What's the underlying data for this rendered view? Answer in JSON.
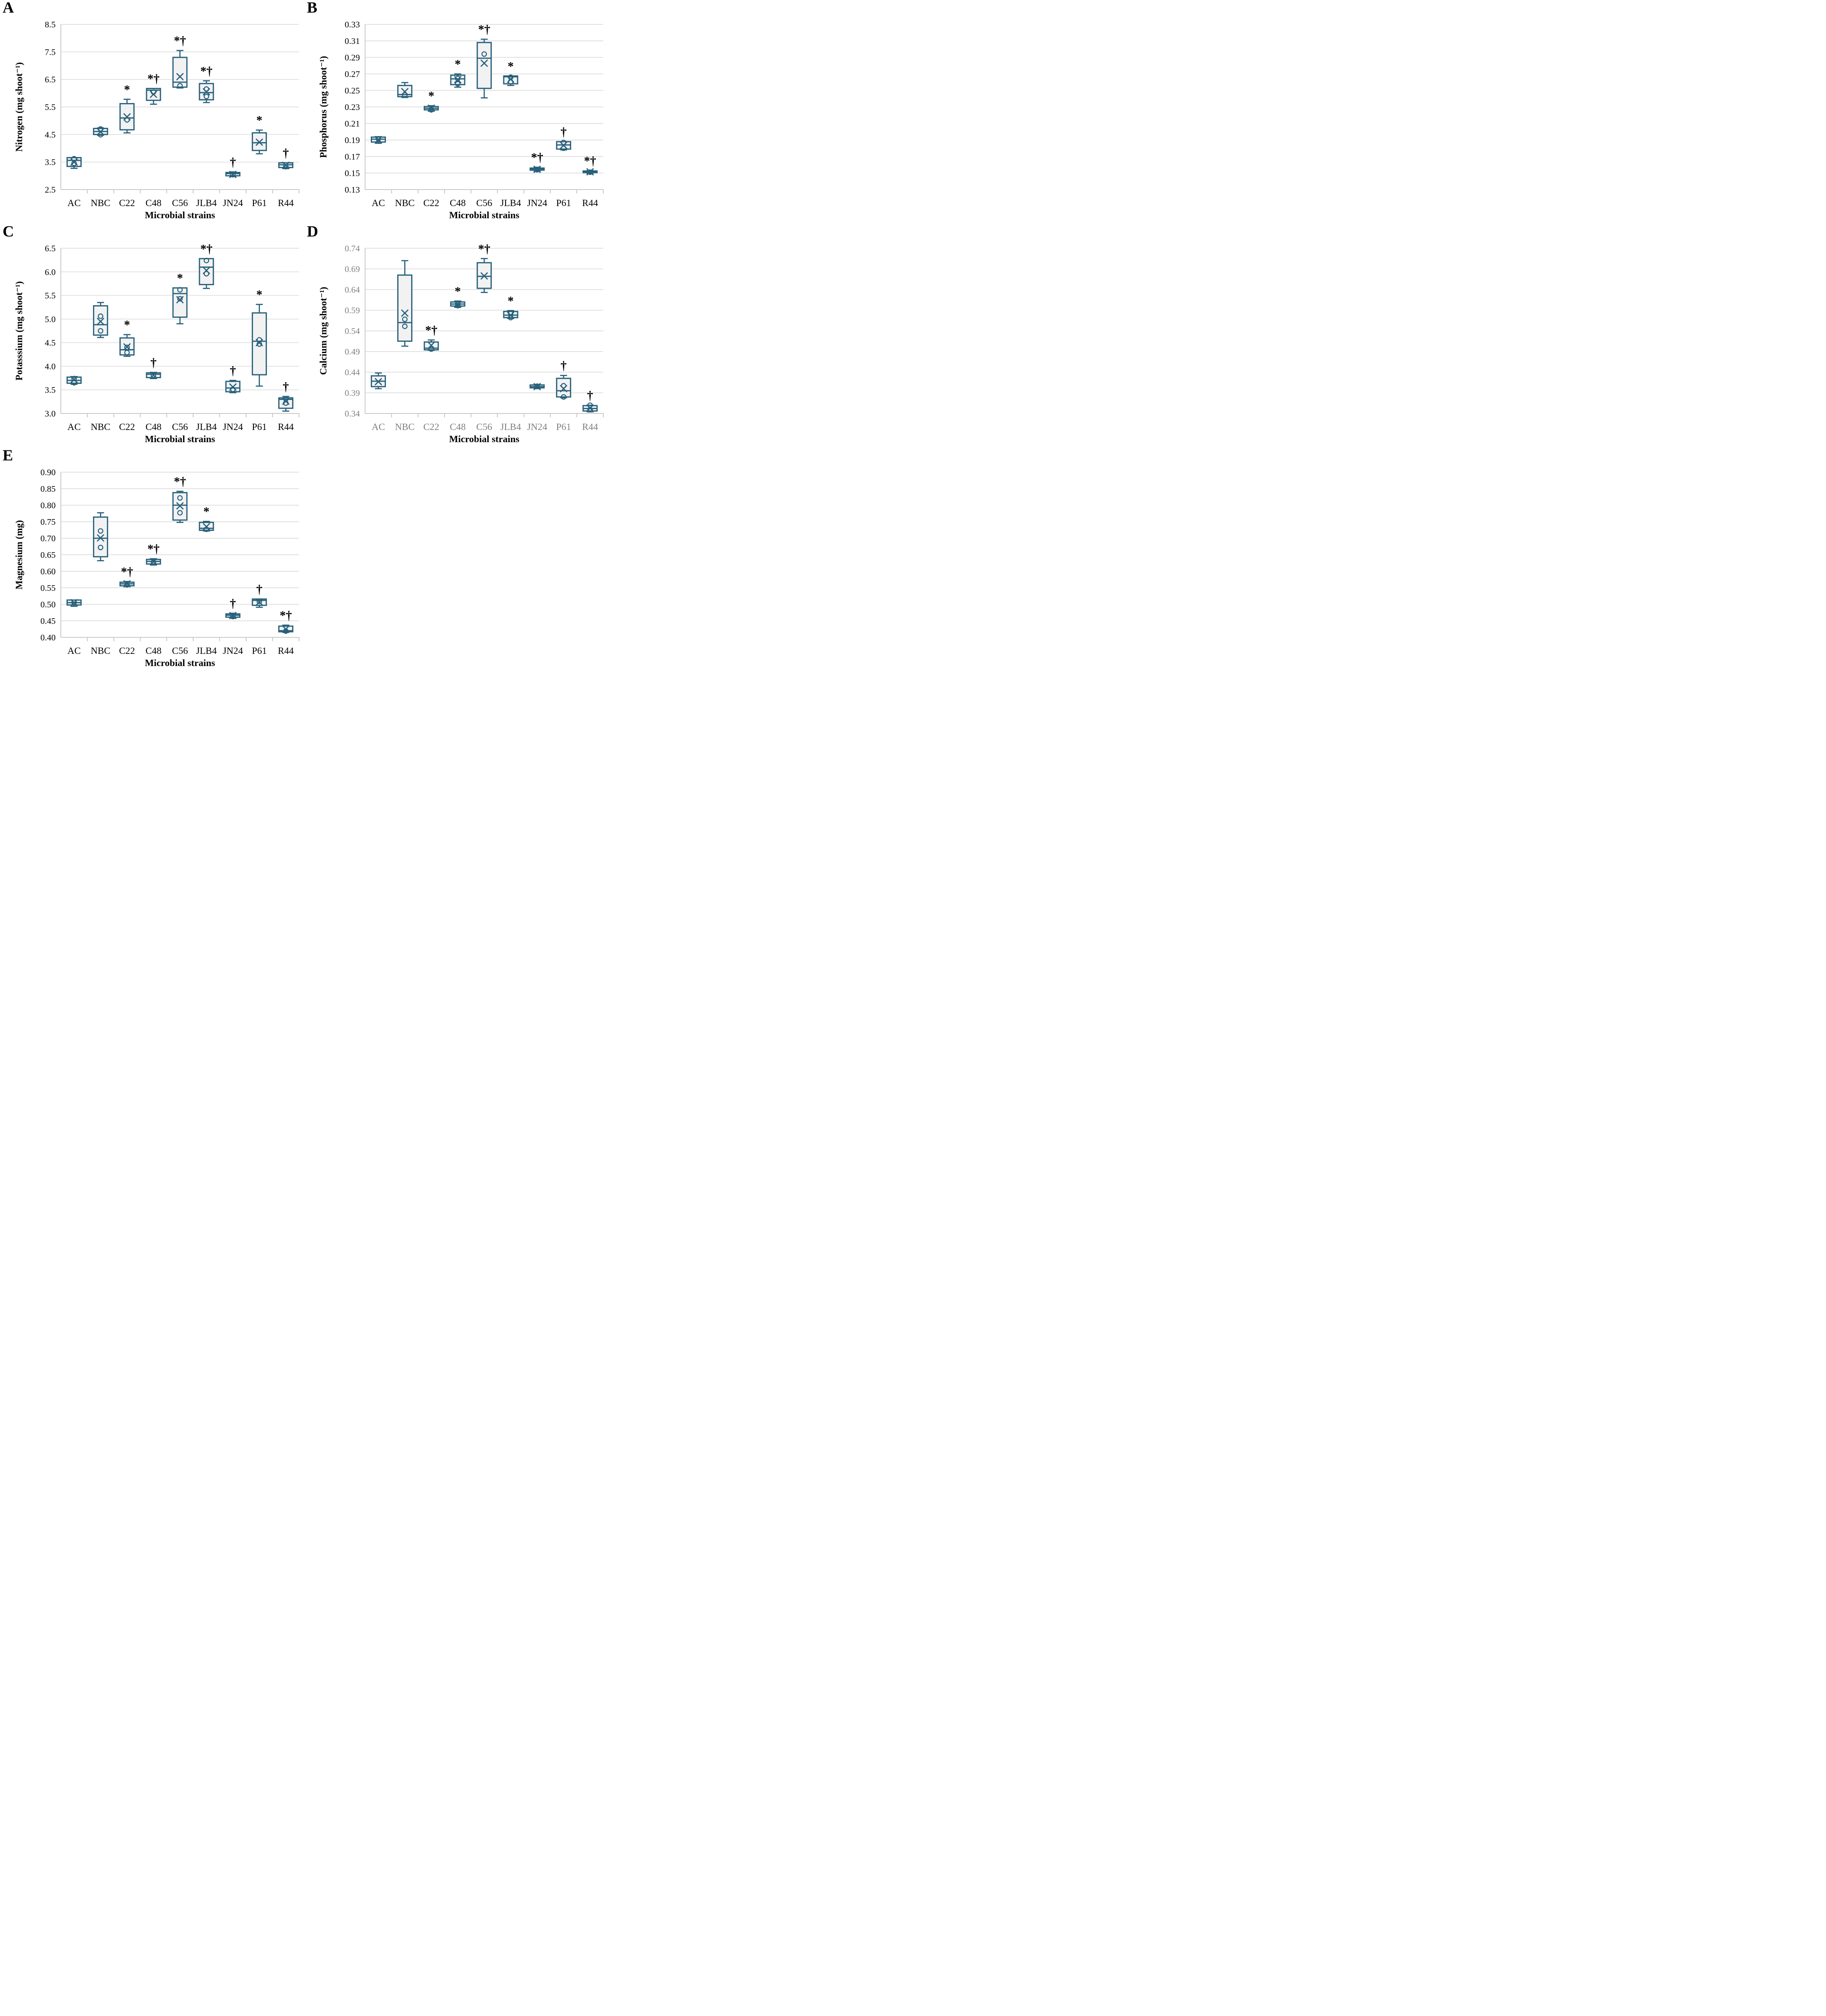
{
  "style": {
    "background_color": "#ffffff",
    "box_stroke": "#27607B",
    "box_fill": "#F2F2F2",
    "grid_color": "#D9D9D9",
    "axis_color": "#C0C0C0",
    "text_color": "#000000",
    "muted_tick_color": "#7F7F7F"
  },
  "chart_data": [
    {
      "panel_letter": "A",
      "type": "box",
      "ylabel": "Nitrogen (mg shoot⁻¹)",
      "xlabel": "Microbial strains",
      "ylim": [
        2.5,
        8.5
      ],
      "grid": true,
      "legend": "none",
      "tick_label_color": "#000000",
      "yticks": [
        2.5,
        3.5,
        4.5,
        5.5,
        6.5,
        7.5,
        8.5
      ],
      "ytick_labels": [
        "2.5",
        "3.5",
        "4.5",
        "5.5",
        "6.5",
        "7.5",
        "8.5"
      ],
      "categories": [
        "AC",
        "NBC",
        "C22",
        "C48",
        "C56",
        "JLB4",
        "JN24",
        "P61",
        "R44"
      ],
      "boxes": [
        {
          "category": "AC",
          "whisker_low": 3.27,
          "q1": 3.34,
          "median": 3.56,
          "q3": 3.66,
          "whisker_high": 3.66,
          "mean": 3.5,
          "points": [
            3.62,
            3.45
          ],
          "significance": ""
        },
        {
          "category": "NBC",
          "whisker_low": 4.47,
          "q1": 4.5,
          "median": 4.61,
          "q3": 4.72,
          "whisker_high": 4.74,
          "mean": 4.6,
          "points": [
            4.7,
            4.49
          ],
          "significance": ""
        },
        {
          "category": "C22",
          "whisker_low": 4.56,
          "q1": 4.67,
          "median": 5.1,
          "q3": 5.62,
          "whisker_high": 5.78,
          "mean": 5.14,
          "points": [
            5.03
          ],
          "significance": "*"
        },
        {
          "category": "C48",
          "whisker_low": 5.6,
          "q1": 5.74,
          "median": 6.11,
          "q3": 6.17,
          "whisker_high": 6.17,
          "mean": 5.96,
          "points": [
            6.04
          ],
          "significance": "*†"
        },
        {
          "category": "C56",
          "whisker_low": 6.19,
          "q1": 6.22,
          "median": 6.4,
          "q3": 7.3,
          "whisker_high": 7.55,
          "mean": 6.6,
          "points": [
            6.27
          ],
          "significance": "*†"
        },
        {
          "category": "JLB4",
          "whisker_low": 5.66,
          "q1": 5.76,
          "median": 6.02,
          "q3": 6.35,
          "whisker_high": 6.45,
          "mean": 6.05,
          "points": [
            6.15,
            5.88
          ],
          "significance": "*†"
        },
        {
          "category": "JN24",
          "whisker_low": 2.97,
          "q1": 3.0,
          "median": 3.08,
          "q3": 3.12,
          "whisker_high": 3.14,
          "mean": 3.05,
          "points": [
            3.04
          ],
          "significance": "†"
        },
        {
          "category": "P61",
          "whisker_low": 3.8,
          "q1": 3.92,
          "median": 4.2,
          "q3": 4.56,
          "whisker_high": 4.66,
          "mean": 4.22,
          "points": [],
          "significance": "*"
        },
        {
          "category": "R44",
          "whisker_low": 3.26,
          "q1": 3.3,
          "median": 3.4,
          "q3": 3.47,
          "whisker_high": 3.47,
          "mean": 3.38,
          "points": [
            3.33
          ],
          "significance": "†"
        }
      ]
    },
    {
      "panel_letter": "B",
      "type": "box",
      "ylabel": "Phosphorus (mg shoot⁻¹)",
      "xlabel": "Microbial strains",
      "ylim": [
        0.13,
        0.33
      ],
      "grid": true,
      "legend": "none",
      "tick_label_color": "#000000",
      "yticks": [
        0.13,
        0.15,
        0.17,
        0.19,
        0.21,
        0.23,
        0.25,
        0.27,
        0.29,
        0.31,
        0.33
      ],
      "ytick_labels": [
        "0.13",
        "0.15",
        "0.17",
        "0.19",
        "0.21",
        "0.23",
        "0.25",
        "0.27",
        "0.29",
        "0.31",
        "0.33"
      ],
      "categories": [
        "AC",
        "NBC",
        "C22",
        "C48",
        "C56",
        "JLB4",
        "JN24",
        "P61",
        "R44"
      ],
      "boxes": [
        {
          "category": "AC",
          "whisker_low": 0.186,
          "q1": 0.1875,
          "median": 0.191,
          "q3": 0.1935,
          "whisker_high": 0.194,
          "mean": 0.1905,
          "points": [
            0.1915
          ],
          "significance": ""
        },
        {
          "category": "NBC",
          "whisker_low": 0.2415,
          "q1": 0.2425,
          "median": 0.245,
          "q3": 0.256,
          "whisker_high": 0.2595,
          "mean": 0.2485,
          "points": [
            0.2445
          ],
          "significance": ""
        },
        {
          "category": "C22",
          "whisker_low": 0.225,
          "q1": 0.2265,
          "median": 0.2285,
          "q3": 0.2305,
          "whisker_high": 0.2315,
          "mean": 0.2285,
          "points": [
            0.2265
          ],
          "significance": "*"
        },
        {
          "category": "C48",
          "whisker_low": 0.254,
          "q1": 0.257,
          "median": 0.264,
          "q3": 0.2685,
          "whisker_high": 0.27,
          "mean": 0.263,
          "points": [
            0.2645,
            0.258
          ],
          "significance": "*"
        },
        {
          "category": "C56",
          "whisker_low": 0.241,
          "q1": 0.2525,
          "median": 0.289,
          "q3": 0.308,
          "whisker_high": 0.312,
          "mean": 0.283,
          "points": [
            0.294
          ],
          "significance": "*†"
        },
        {
          "category": "JLB4",
          "whisker_low": 0.256,
          "q1": 0.258,
          "median": 0.2665,
          "q3": 0.2675,
          "whisker_high": 0.2675,
          "mean": 0.2635,
          "points": [
            0.266,
            0.2605
          ],
          "significance": "*"
        },
        {
          "category": "JN24",
          "whisker_low": 0.152,
          "q1": 0.1535,
          "median": 0.155,
          "q3": 0.156,
          "whisker_high": 0.157,
          "mean": 0.1545,
          "points": [
            0.154
          ],
          "significance": "*†"
        },
        {
          "category": "P61",
          "whisker_low": 0.178,
          "q1": 0.179,
          "median": 0.184,
          "q3": 0.188,
          "whisker_high": 0.188,
          "mean": 0.1835,
          "points": [
            0.187,
            0.18
          ],
          "significance": "†"
        },
        {
          "category": "R44",
          "whisker_low": 0.149,
          "q1": 0.1505,
          "median": 0.1515,
          "q3": 0.1525,
          "whisker_high": 0.153,
          "mean": 0.1515,
          "points": [
            0.151
          ],
          "significance": "*†"
        }
      ]
    },
    {
      "panel_letter": "C",
      "type": "box",
      "ylabel": "Potasssium (mg shoot⁻¹)",
      "xlabel": "Microbial strains",
      "ylim": [
        3.0,
        6.5
      ],
      "grid": true,
      "legend": "none",
      "tick_label_color": "#000000",
      "yticks": [
        3.0,
        3.5,
        4.0,
        4.5,
        5.0,
        5.5,
        6.0,
        6.5
      ],
      "ytick_labels": [
        "3.0",
        "3.5",
        "4.0",
        "4.5",
        "5.0",
        "5.5",
        "6.0",
        "6.5"
      ],
      "categories": [
        "AC",
        "NBC",
        "C22",
        "C48",
        "C56",
        "JLB4",
        "JN24",
        "P61",
        "R44"
      ],
      "boxes": [
        {
          "category": "AC",
          "whisker_low": 3.62,
          "q1": 3.64,
          "median": 3.7,
          "q3": 3.77,
          "whisker_high": 3.78,
          "mean": 3.72,
          "points": [
            3.74,
            3.65
          ],
          "significance": ""
        },
        {
          "category": "NBC",
          "whisker_low": 4.61,
          "q1": 4.66,
          "median": 4.88,
          "q3": 5.28,
          "whisker_high": 5.35,
          "mean": 4.95,
          "points": [
            5.06,
            4.75
          ],
          "significance": ""
        },
        {
          "category": "C22",
          "whisker_low": 4.21,
          "q1": 4.24,
          "median": 4.35,
          "q3": 4.6,
          "whisker_high": 4.67,
          "mean": 4.41,
          "points": [
            4.4,
            4.29
          ],
          "significance": "*"
        },
        {
          "category": "C48",
          "whisker_low": 3.74,
          "q1": 3.76,
          "median": 3.83,
          "q3": 3.86,
          "whisker_high": 3.87,
          "mean": 3.81,
          "points": [
            3.8
          ],
          "significance": "†"
        },
        {
          "category": "C56",
          "whisker_low": 4.9,
          "q1": 5.04,
          "median": 5.54,
          "q3": 5.66,
          "whisker_high": 5.66,
          "mean": 5.41,
          "points": [
            5.62,
            5.43
          ],
          "significance": "*"
        },
        {
          "category": "JLB4",
          "whisker_low": 5.65,
          "q1": 5.73,
          "median": 6.1,
          "q3": 6.28,
          "whisker_high": 6.28,
          "mean": 6.03,
          "points": [
            6.24,
            5.96
          ],
          "significance": "*†"
        },
        {
          "category": "JN24",
          "whisker_low": 3.44,
          "q1": 3.46,
          "median": 3.54,
          "q3": 3.68,
          "whisker_high": 3.7,
          "mean": 3.56,
          "points": [
            3.51
          ],
          "significance": "†"
        },
        {
          "category": "P61",
          "whisker_low": 3.58,
          "q1": 3.82,
          "median": 4.53,
          "q3": 5.13,
          "whisker_high": 5.31,
          "mean": 4.5,
          "points": [
            4.56,
            4.47
          ],
          "significance": "*"
        },
        {
          "category": "R44",
          "whisker_low": 3.05,
          "q1": 3.11,
          "median": 3.3,
          "q3": 3.33,
          "whisker_high": 3.36,
          "mean": 3.26,
          "points": [
            3.31,
            3.22
          ],
          "significance": "†"
        }
      ]
    },
    {
      "panel_letter": "D",
      "type": "box",
      "ylabel": "Calcium (mg shoot⁻¹)",
      "xlabel": "Microbial strains",
      "ylim": [
        0.34,
        0.74
      ],
      "grid": true,
      "legend": "none",
      "tick_label_color": "#7F7F7F",
      "yticks": [
        0.34,
        0.39,
        0.44,
        0.49,
        0.54,
        0.59,
        0.64,
        0.69,
        0.74
      ],
      "ytick_labels": [
        "0.34",
        "0.39",
        "0.44",
        "0.49",
        "0.54",
        "0.59",
        "0.64",
        "0.69",
        "0.74"
      ],
      "categories": [
        "AC",
        "NBC",
        "C22",
        "C48",
        "C56",
        "JLB4",
        "JN24",
        "P61",
        "R44"
      ],
      "boxes": [
        {
          "category": "AC",
          "whisker_low": 0.4,
          "q1": 0.405,
          "median": 0.418,
          "q3": 0.431,
          "whisker_high": 0.438,
          "mean": 0.417,
          "points": [],
          "significance": ""
        },
        {
          "category": "NBC",
          "whisker_low": 0.503,
          "q1": 0.515,
          "median": 0.56,
          "q3": 0.675,
          "whisker_high": 0.71,
          "mean": 0.583,
          "points": [
            0.568,
            0.551
          ],
          "significance": ""
        },
        {
          "category": "C22",
          "whisker_low": 0.493,
          "q1": 0.494,
          "median": 0.498,
          "q3": 0.513,
          "whisker_high": 0.518,
          "mean": 0.505,
          "points": [
            0.496
          ],
          "significance": "*†"
        },
        {
          "category": "C48",
          "whisker_low": 0.597,
          "q1": 0.6,
          "median": 0.605,
          "q3": 0.61,
          "whisker_high": 0.612,
          "mean": 0.605,
          "points": [
            0.607,
            0.601
          ],
          "significance": "*"
        },
        {
          "category": "C56",
          "whisker_low": 0.633,
          "q1": 0.643,
          "median": 0.672,
          "q3": 0.705,
          "whisker_high": 0.715,
          "mean": 0.673,
          "points": [],
          "significance": "*†"
        },
        {
          "category": "JLB4",
          "whisker_low": 0.57,
          "q1": 0.572,
          "median": 0.578,
          "q3": 0.587,
          "whisker_high": 0.589,
          "mean": 0.578,
          "points": [
            0.582,
            0.572
          ],
          "significance": "*"
        },
        {
          "category": "JN24",
          "whisker_low": 0.4,
          "q1": 0.402,
          "median": 0.405,
          "q3": 0.409,
          "whisker_high": 0.41,
          "mean": 0.405,
          "points": [
            0.406
          ],
          "significance": ""
        },
        {
          "category": "P61",
          "whisker_low": 0.378,
          "q1": 0.38,
          "median": 0.395,
          "q3": 0.425,
          "whisker_high": 0.432,
          "mean": 0.4,
          "points": [
            0.407,
            0.38
          ],
          "significance": "†"
        },
        {
          "category": "R44",
          "whisker_low": 0.344,
          "q1": 0.346,
          "median": 0.352,
          "q3": 0.359,
          "whisker_high": 0.36,
          "mean": 0.353,
          "points": [
            0.36,
            0.349
          ],
          "significance": "†"
        }
      ]
    },
    {
      "panel_letter": "E",
      "type": "box",
      "ylabel": "Magnesium (mg)",
      "xlabel": "Microbial strains",
      "ylim": [
        0.4,
        0.9
      ],
      "grid": true,
      "legend": "none",
      "tick_label_color": "#000000",
      "yticks": [
        0.4,
        0.45,
        0.5,
        0.55,
        0.6,
        0.65,
        0.7,
        0.75,
        0.8,
        0.85,
        0.9
      ],
      "ytick_labels": [
        "0.40",
        "0.45",
        "0.50",
        "0.55",
        "0.60",
        "0.65",
        "0.70",
        "0.75",
        "0.80",
        "0.85",
        "0.90"
      ],
      "categories": [
        "AC",
        "NBC",
        "C22",
        "C48",
        "C56",
        "JLB4",
        "JN24",
        "P61",
        "R44"
      ],
      "boxes": [
        {
          "category": "AC",
          "whisker_low": 0.494,
          "q1": 0.498,
          "median": 0.505,
          "q3": 0.513,
          "whisker_high": 0.513,
          "mean": 0.505,
          "points": [
            0.506
          ],
          "significance": ""
        },
        {
          "category": "NBC",
          "whisker_low": 0.632,
          "q1": 0.644,
          "median": 0.7,
          "q3": 0.764,
          "whisker_high": 0.777,
          "mean": 0.701,
          "points": [
            0.722,
            0.672
          ],
          "significance": ""
        },
        {
          "category": "C22",
          "whisker_low": 0.554,
          "q1": 0.556,
          "median": 0.562,
          "q3": 0.567,
          "whisker_high": 0.569,
          "mean": 0.562,
          "points": [
            0.559
          ],
          "significance": "*†"
        },
        {
          "category": "C48",
          "whisker_low": 0.619,
          "q1": 0.622,
          "median": 0.63,
          "q3": 0.636,
          "whisker_high": 0.638,
          "mean": 0.629,
          "points": [
            0.627
          ],
          "significance": "*†"
        },
        {
          "category": "C56",
          "whisker_low": 0.748,
          "q1": 0.755,
          "median": 0.8,
          "q3": 0.838,
          "whisker_high": 0.842,
          "mean": 0.798,
          "points": [
            0.822,
            0.777
          ],
          "significance": "*†"
        },
        {
          "category": "JLB4",
          "whisker_low": 0.722,
          "q1": 0.724,
          "median": 0.73,
          "q3": 0.748,
          "whisker_high": 0.751,
          "mean": 0.735,
          "points": [
            0.727
          ],
          "significance": "*"
        },
        {
          "category": "JN24",
          "whisker_low": 0.458,
          "q1": 0.461,
          "median": 0.467,
          "q3": 0.471,
          "whisker_high": 0.473,
          "mean": 0.466,
          "points": [
            0.463
          ],
          "significance": "†"
        },
        {
          "category": "P61",
          "whisker_low": 0.491,
          "q1": 0.497,
          "median": 0.512,
          "q3": 0.516,
          "whisker_high": 0.516,
          "mean": 0.507,
          "points": [
            0.509
          ],
          "significance": "†"
        },
        {
          "category": "R44",
          "whisker_low": 0.415,
          "q1": 0.417,
          "median": 0.42,
          "q3": 0.434,
          "whisker_high": 0.437,
          "mean": 0.425,
          "points": [
            0.419
          ],
          "significance": "*†"
        }
      ]
    }
  ]
}
